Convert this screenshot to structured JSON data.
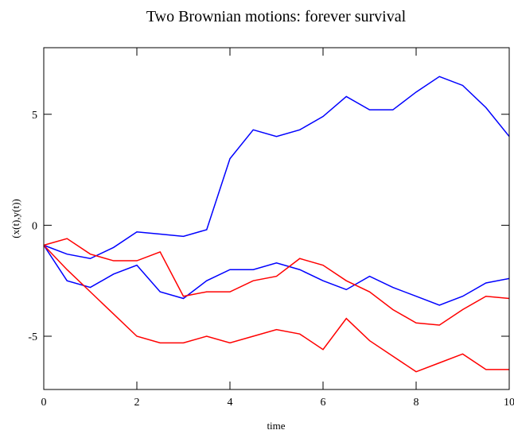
{
  "chart_data": {
    "type": "line",
    "title": "Two Brownian motions: forever survival",
    "x_label": "time",
    "y_label": "(x(t),y(t))",
    "x": [
      0,
      0.5,
      1,
      1.5,
      2,
      2.5,
      3,
      3.5,
      4,
      4.5,
      5,
      5.5,
      6,
      6.5,
      7,
      7.5,
      8,
      8.5,
      9,
      9.5,
      10
    ],
    "series": [
      {
        "color": "#0000ff",
        "values": [
          -0.9,
          -1.3,
          -1.5,
          -1.0,
          -0.3,
          -0.4,
          -0.5,
          -0.2,
          3.0,
          4.3,
          4.0,
          4.3,
          4.9,
          5.8,
          5.2,
          5.2,
          6.0,
          6.7,
          6.3,
          5.3,
          4.0
        ]
      },
      {
        "color": "#0000ff",
        "values": [
          -0.9,
          -2.5,
          -2.8,
          -2.2,
          -1.8,
          -3.0,
          -3.3,
          -2.5,
          -2.0,
          -2.0,
          -1.7,
          -2.0,
          -2.5,
          -2.9,
          -2.3,
          -2.8,
          -3.2,
          -3.6,
          -3.2,
          -2.6,
          -2.4
        ]
      },
      {
        "color": "#ff0000",
        "values": [
          -0.9,
          -0.6,
          -1.3,
          -1.6,
          -1.6,
          -1.2,
          -3.2,
          -3.0,
          -3.0,
          -2.5,
          -2.3,
          -1.5,
          -1.8,
          -2.5,
          -3.0,
          -3.8,
          -4.4,
          -4.5,
          -3.8,
          -3.2,
          -3.3
        ]
      },
      {
        "color": "#ff0000",
        "values": [
          -0.9,
          -2.0,
          -3.0,
          -4.0,
          -5.0,
          -5.3,
          -5.3,
          -5.0,
          -5.3,
          -5.0,
          -4.7,
          -4.9,
          -5.6,
          -4.2,
          -5.2,
          -5.9,
          -6.6,
          -6.2,
          -5.8,
          -6.5,
          -6.5
        ]
      }
    ],
    "xlim": [
      0,
      10
    ],
    "xticks": [
      0,
      2,
      4,
      6,
      8,
      10
    ],
    "ylim": [
      -7.4,
      8
    ],
    "yticks": [
      -5,
      0,
      5
    ]
  }
}
